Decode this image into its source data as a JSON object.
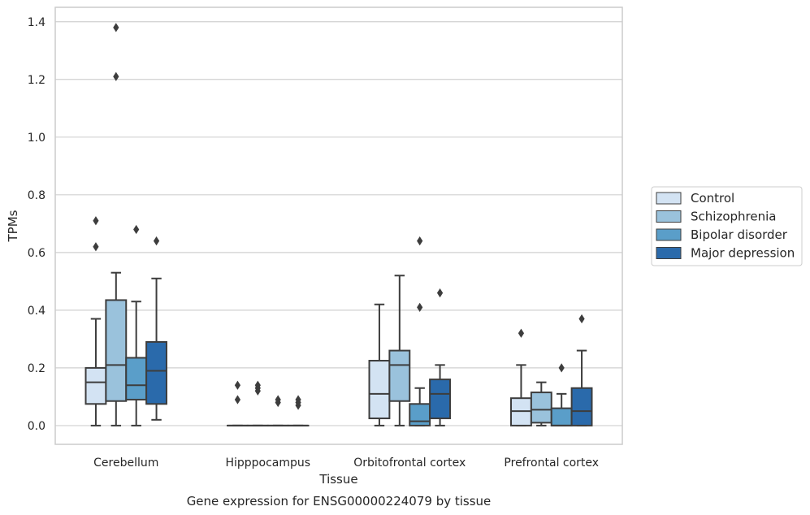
{
  "chart_data": {
    "type": "boxplot",
    "title": "",
    "caption": "Gene expression for ENSG00000224079 by tissue",
    "xlabel": "Tissue",
    "ylabel": "TPMs",
    "ylim": [
      -0.065,
      1.45
    ],
    "yticks": [
      "0.0",
      "0.2",
      "0.4",
      "0.6",
      "0.8",
      "1.0",
      "1.2",
      "1.4"
    ],
    "grid": "horizontal",
    "legend_position": "right",
    "categories": [
      "Cerebellum",
      "Hipppocampus",
      "Orbitofrontal cortex",
      "Prefrontal cortex"
    ],
    "series": [
      {
        "name": "Control",
        "color": "#d3e3f3",
        "boxes": [
          {
            "q1": 0.075,
            "median": 0.15,
            "q3": 0.2,
            "whisker_low": 0.0,
            "whisker_high": 0.37,
            "outliers": [
              0.71,
              0.62
            ]
          },
          {
            "q1": 0.0,
            "median": 0.0,
            "q3": 0.0,
            "whisker_low": 0.0,
            "whisker_high": 0.0,
            "outliers": [
              0.14,
              0.09
            ]
          },
          {
            "q1": 0.025,
            "median": 0.11,
            "q3": 0.225,
            "whisker_low": 0.0,
            "whisker_high": 0.42,
            "outliers": []
          },
          {
            "q1": 0.0,
            "median": 0.05,
            "q3": 0.095,
            "whisker_low": 0.0,
            "whisker_high": 0.21,
            "outliers": [
              0.32
            ]
          }
        ]
      },
      {
        "name": "Schizophrenia",
        "color": "#9ac2dc",
        "boxes": [
          {
            "q1": 0.085,
            "median": 0.21,
            "q3": 0.435,
            "whisker_low": 0.0,
            "whisker_high": 0.53,
            "outliers": [
              1.38,
              1.21
            ]
          },
          {
            "q1": 0.0,
            "median": 0.0,
            "q3": 0.0,
            "whisker_low": 0.0,
            "whisker_high": 0.0,
            "outliers": [
              0.14,
              0.13,
              0.12
            ]
          },
          {
            "q1": 0.085,
            "median": 0.21,
            "q3": 0.26,
            "whisker_low": 0.0,
            "whisker_high": 0.52,
            "outliers": []
          },
          {
            "q1": 0.01,
            "median": 0.055,
            "q3": 0.115,
            "whisker_low": 0.0,
            "whisker_high": 0.15,
            "outliers": []
          }
        ]
      },
      {
        "name": "Bipolar disorder",
        "color": "#5a9ec9",
        "boxes": [
          {
            "q1": 0.09,
            "median": 0.14,
            "q3": 0.235,
            "whisker_low": 0.0,
            "whisker_high": 0.43,
            "outliers": [
              0.68
            ]
          },
          {
            "q1": 0.0,
            "median": 0.0,
            "q3": 0.0,
            "whisker_low": 0.0,
            "whisker_high": 0.0,
            "outliers": [
              0.09,
              0.08
            ]
          },
          {
            "q1": 0.0,
            "median": 0.015,
            "q3": 0.075,
            "whisker_low": 0.0,
            "whisker_high": 0.13,
            "outliers": [
              0.64,
              0.41
            ]
          },
          {
            "q1": 0.0,
            "median": 0.0,
            "q3": 0.06,
            "whisker_low": 0.0,
            "whisker_high": 0.11,
            "outliers": [
              0.2
            ]
          }
        ]
      },
      {
        "name": "Major depression",
        "color": "#2a6aab",
        "boxes": [
          {
            "q1": 0.075,
            "median": 0.19,
            "q3": 0.29,
            "whisker_low": 0.02,
            "whisker_high": 0.51,
            "outliers": [
              0.64
            ]
          },
          {
            "q1": 0.0,
            "median": 0.0,
            "q3": 0.0,
            "whisker_low": 0.0,
            "whisker_high": 0.0,
            "outliers": [
              0.09,
              0.08,
              0.07
            ]
          },
          {
            "q1": 0.025,
            "median": 0.11,
            "q3": 0.16,
            "whisker_low": 0.0,
            "whisker_high": 0.21,
            "outliers": [
              0.46
            ]
          },
          {
            "q1": 0.0,
            "median": 0.05,
            "q3": 0.13,
            "whisker_low": 0.0,
            "whisker_high": 0.26,
            "outliers": [
              0.37
            ]
          }
        ]
      }
    ]
  }
}
